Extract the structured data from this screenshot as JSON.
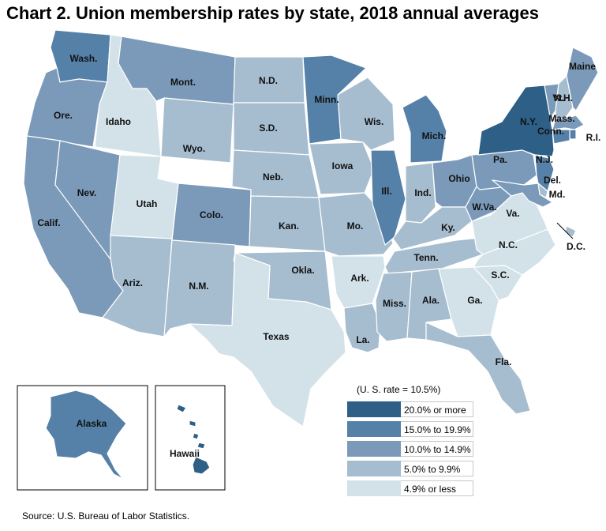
{
  "title": "Chart 2. Union membership rates by state, 2018 annual averages",
  "source": "Source: U.S. Bureau of Labor Statistics.",
  "legend": {
    "title": "(U. S. rate = 10.5%)",
    "items": [
      {
        "label": "20.0% or more",
        "color": "#2d5f87"
      },
      {
        "label": "15.0% to 19.9%",
        "color": "#5580a8"
      },
      {
        "label": "10.0% to 14.9%",
        "color": "#7b9ab9"
      },
      {
        "label": "5.0% to 9.9%",
        "color": "#a6bccf"
      },
      {
        "label": "4.9% or less",
        "color": "#d3e2e9"
      }
    ]
  },
  "states": {
    "wash": {
      "label": "Wash.",
      "tier": 1
    },
    "ore": {
      "label": "Ore.",
      "tier": 2
    },
    "calif": {
      "label": "Calif.",
      "tier": 2
    },
    "nev": {
      "label": "Nev.",
      "tier": 2
    },
    "idaho": {
      "label": "Idaho",
      "tier": 4
    },
    "mont": {
      "label": "Mont.",
      "tier": 2
    },
    "wyo": {
      "label": "Wyo.",
      "tier": 3
    },
    "utah": {
      "label": "Utah",
      "tier": 4
    },
    "colo": {
      "label": "Colo.",
      "tier": 2
    },
    "ariz": {
      "label": "Ariz.",
      "tier": 3
    },
    "nm": {
      "label": "N.M.",
      "tier": 3
    },
    "nd": {
      "label": "N.D.",
      "tier": 3
    },
    "sd": {
      "label": "S.D.",
      "tier": 3
    },
    "neb": {
      "label": "Neb.",
      "tier": 3
    },
    "kan": {
      "label": "Kan.",
      "tier": 3
    },
    "okla": {
      "label": "Okla.",
      "tier": 3
    },
    "texas": {
      "label": "Texas",
      "tier": 4
    },
    "minn": {
      "label": "Minn.",
      "tier": 1
    },
    "iowa": {
      "label": "Iowa",
      "tier": 3
    },
    "mo": {
      "label": "Mo.",
      "tier": 3
    },
    "ark": {
      "label": "Ark.",
      "tier": 4
    },
    "la": {
      "label": "La.",
      "tier": 3
    },
    "wis": {
      "label": "Wis.",
      "tier": 3
    },
    "ill": {
      "label": "Ill.",
      "tier": 1
    },
    "mich": {
      "label": "Mich.",
      "tier": 1
    },
    "ind": {
      "label": "Ind.",
      "tier": 3
    },
    "ohio": {
      "label": "Ohio",
      "tier": 2
    },
    "ky": {
      "label": "Ky.",
      "tier": 3
    },
    "tenn": {
      "label": "Tenn.",
      "tier": 3
    },
    "miss": {
      "label": "Miss.",
      "tier": 3
    },
    "ala": {
      "label": "Ala.",
      "tier": 3
    },
    "ga": {
      "label": "Ga.",
      "tier": 4
    },
    "fla": {
      "label": "Fla.",
      "tier": 3
    },
    "sc": {
      "label": "S.C.",
      "tier": 4
    },
    "nc": {
      "label": "N.C.",
      "tier": 4
    },
    "va": {
      "label": "Va.",
      "tier": 4
    },
    "wva": {
      "label": "W.Va.",
      "tier": 2
    },
    "pa": {
      "label": "Pa.",
      "tier": 2
    },
    "ny": {
      "label": "N.Y.",
      "tier": 0
    },
    "nj": {
      "label": "N.J.",
      "tier": 1
    },
    "del": {
      "label": "Del.",
      "tier": 3
    },
    "md": {
      "label": "Md.",
      "tier": 2
    },
    "dc": {
      "label": "D.C.",
      "tier": 3
    },
    "vt": {
      "label": "Vt.",
      "tier": 2
    },
    "nh": {
      "label": "N.H.",
      "tier": 3
    },
    "maine": {
      "label": "Maine",
      "tier": 2
    },
    "mass": {
      "label": "Mass.",
      "tier": 2
    },
    "ri": {
      "label": "R.I.",
      "tier": 1
    },
    "conn": {
      "label": "Conn.",
      "tier": 1
    },
    "alaska": {
      "label": "Alaska",
      "tier": 1
    },
    "hawaii": {
      "label": "Hawaii",
      "tier": 0
    }
  }
}
